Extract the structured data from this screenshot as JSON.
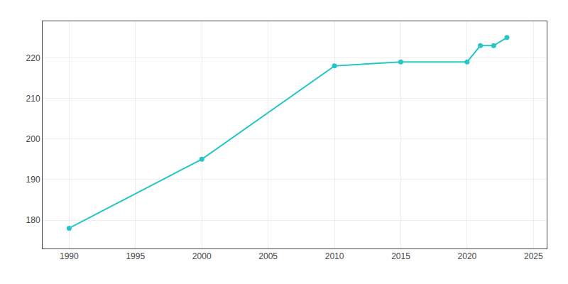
{
  "chart_data": {
    "type": "line",
    "x": [
      1990,
      2000,
      2010,
      2015,
      2020,
      2021,
      2022,
      2023
    ],
    "values": [
      178,
      195,
      218,
      219,
      219,
      223,
      223,
      225
    ],
    "color": "#26c6c6",
    "marker": "circle",
    "xlim": [
      1988,
      2026
    ],
    "ylim": [
      173,
      229
    ],
    "xticks": [
      1990,
      1995,
      2000,
      2005,
      2010,
      2015,
      2020,
      2025
    ],
    "yticks": [
      180,
      190,
      200,
      210,
      220
    ],
    "grid": true
  }
}
